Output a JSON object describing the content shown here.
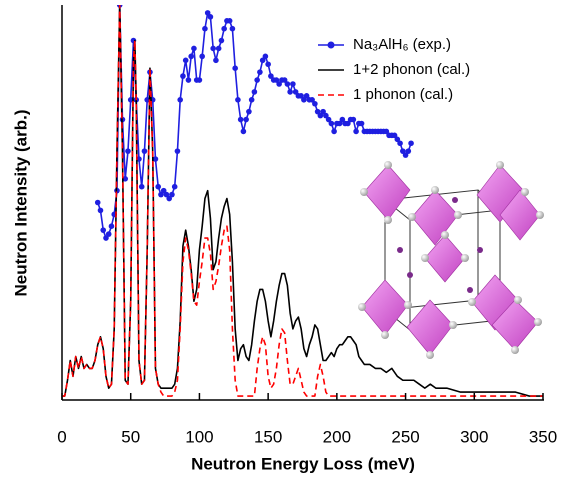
{
  "chart_data": {
    "type": "line",
    "x_label": "Neutron Energy Loss (meV)",
    "y_label": "Neutron Intensity (arb.)",
    "xlim": [
      0,
      350
    ],
    "ylim": [
      0,
      100
    ],
    "xticks": [
      0,
      50,
      100,
      150,
      200,
      250,
      300,
      350
    ],
    "legend": "top-right",
    "series": [
      {
        "name": "Na₃AlH₆ (exp.)",
        "color": "#1f1fe0",
        "marker": "circle",
        "linestyle": "solid",
        "x": [
          26,
          28,
          30,
          32,
          34,
          36,
          38,
          40,
          42,
          44,
          46,
          48,
          50,
          52,
          54,
          56,
          58,
          60,
          62,
          64,
          66,
          68,
          70,
          72,
          74,
          76,
          78,
          80,
          82,
          84,
          86,
          88,
          90,
          92,
          94,
          96,
          98,
          100,
          102,
          104,
          106,
          108,
          110,
          112,
          114,
          116,
          118,
          120,
          122,
          124,
          126,
          128,
          130,
          132,
          134,
          136,
          138,
          140,
          142,
          144,
          146,
          148,
          150,
          152,
          154,
          156,
          158,
          160,
          162,
          164,
          166,
          168,
          170,
          172,
          174,
          176,
          178,
          180,
          182,
          184,
          186,
          188,
          190,
          192,
          194,
          196,
          198,
          200,
          202,
          204,
          206,
          208,
          210,
          212,
          214,
          216,
          218,
          220,
          222,
          224,
          226,
          228,
          230,
          232,
          234,
          236,
          238,
          240,
          242,
          244,
          246,
          248,
          250,
          252,
          254
        ],
        "values": [
          50,
          48,
          43,
          41,
          42,
          44,
          47,
          53,
          100,
          71,
          56,
          63,
          76,
          91,
          76,
          61,
          54,
          63,
          76,
          83,
          76,
          61,
          54,
          52,
          53,
          52,
          51,
          52,
          54,
          63,
          76,
          82,
          86,
          81,
          87,
          89,
          81,
          81,
          87,
          94,
          98,
          97,
          89,
          86,
          89,
          91,
          94,
          96,
          96,
          94,
          84,
          76,
          71,
          68,
          71,
          73,
          76,
          78,
          81,
          83,
          86,
          87,
          85,
          82,
          81,
          81,
          80,
          81,
          81,
          80,
          78,
          80,
          78,
          77,
          77,
          76,
          77,
          76,
          76,
          75,
          73,
          72,
          73,
          72,
          71,
          70,
          68,
          70,
          70,
          71,
          70,
          70,
          71,
          71,
          68,
          70,
          70,
          68,
          68,
          68,
          68,
          68,
          68,
          68,
          68,
          68,
          67,
          67,
          67,
          66,
          65,
          63,
          62,
          63,
          65
        ]
      },
      {
        "name": "1+2 phonon (cal.)",
        "color": "#000000",
        "marker": "none",
        "linestyle": "solid",
        "x": [
          0,
          2,
          4,
          6,
          8,
          10,
          12,
          14,
          16,
          18,
          20,
          22,
          24,
          26,
          28,
          30,
          32,
          34,
          36,
          38,
          40,
          42,
          44,
          46,
          48,
          50,
          52,
          53,
          54,
          56,
          58,
          60,
          62,
          64,
          66,
          68,
          70,
          72,
          74,
          76,
          78,
          80,
          82,
          84,
          86,
          88,
          90,
          92,
          94,
          96,
          98,
          100,
          102,
          104,
          106,
          108,
          110,
          112,
          114,
          116,
          118,
          120,
          122,
          124,
          126,
          128,
          130,
          132,
          134,
          136,
          138,
          140,
          142,
          144,
          146,
          148,
          150,
          152,
          154,
          156,
          158,
          160,
          162,
          164,
          166,
          168,
          170,
          172,
          174,
          176,
          178,
          180,
          182,
          184,
          186,
          188,
          190,
          192,
          194,
          196,
          198,
          200,
          202,
          204,
          206,
          208,
          210,
          212,
          214,
          216,
          218,
          220,
          224,
          228,
          232,
          236,
          240,
          244,
          248,
          252,
          256,
          260,
          264,
          268,
          272,
          276,
          280,
          290,
          300,
          310,
          320,
          330,
          340,
          350
        ],
        "values": [
          1,
          1,
          5,
          10,
          6,
          11,
          8,
          11,
          8,
          9,
          8,
          8,
          10,
          14,
          16,
          13,
          6,
          3,
          4,
          18,
          63,
          100,
          63,
          5,
          4,
          25,
          86,
          91,
          76,
          10,
          4,
          5,
          38,
          84,
          63,
          8,
          4,
          3,
          3,
          3,
          3,
          3,
          4,
          8,
          20,
          39,
          43,
          39,
          33,
          25,
          28,
          38,
          44,
          51,
          53,
          46,
          33,
          35,
          41,
          46,
          49,
          51,
          47,
          35,
          18,
          10,
          13,
          14,
          11,
          10,
          14,
          20,
          25,
          28,
          28,
          25,
          20,
          16,
          20,
          25,
          29,
          32,
          32,
          29,
          22,
          18,
          20,
          21,
          18,
          13,
          11,
          14,
          16,
          19,
          18,
          14,
          10,
          10,
          11,
          12,
          11,
          13,
          14,
          14,
          15,
          16,
          16,
          15,
          14,
          11,
          10,
          9,
          9,
          8,
          8,
          7,
          8,
          6,
          5,
          5,
          5,
          4,
          3,
          4,
          3,
          3,
          3,
          2,
          2,
          2,
          2,
          2,
          1,
          1
        ]
      },
      {
        "name": "1 phonon (cal.)",
        "color": "#ff0000",
        "marker": "none",
        "linestyle": "dashed",
        "x": [
          0,
          2,
          4,
          6,
          8,
          10,
          12,
          14,
          16,
          18,
          20,
          22,
          24,
          26,
          28,
          30,
          32,
          34,
          36,
          38,
          40,
          42,
          44,
          46,
          48,
          50,
          52,
          53,
          54,
          56,
          58,
          60,
          62,
          64,
          66,
          68,
          70,
          72,
          74,
          76,
          78,
          80,
          82,
          84,
          86,
          88,
          90,
          92,
          94,
          96,
          98,
          100,
          102,
          104,
          106,
          108,
          110,
          112,
          114,
          116,
          118,
          120,
          122,
          124,
          126,
          128,
          130,
          135,
          140,
          142,
          144,
          146,
          148,
          150,
          152,
          154,
          156,
          158,
          160,
          162,
          164,
          166,
          168,
          170,
          172,
          174,
          176,
          178,
          180,
          182,
          184,
          186,
          188,
          190,
          192,
          194,
          200,
          220,
          250,
          300,
          350
        ],
        "values": [
          1,
          1,
          5,
          10,
          6,
          11,
          8,
          11,
          8,
          9,
          8,
          8,
          10,
          14,
          16,
          13,
          6,
          3,
          4,
          18,
          63,
          100,
          63,
          5,
          4,
          25,
          86,
          91,
          76,
          10,
          4,
          5,
          38,
          84,
          63,
          8,
          4,
          2,
          1,
          1,
          1,
          1,
          2,
          5,
          18,
          35,
          41,
          38,
          32,
          25,
          24,
          30,
          35,
          41,
          41,
          37,
          28,
          30,
          34,
          39,
          43,
          44,
          38,
          18,
          5,
          1,
          1,
          1,
          1,
          8,
          13,
          16,
          14,
          6,
          3,
          4,
          8,
          14,
          18,
          17,
          10,
          4,
          4,
          6,
          8,
          5,
          2,
          1,
          1,
          1,
          1,
          6,
          9,
          6,
          2,
          1,
          1,
          1,
          1,
          1,
          1
        ]
      }
    ]
  }
}
